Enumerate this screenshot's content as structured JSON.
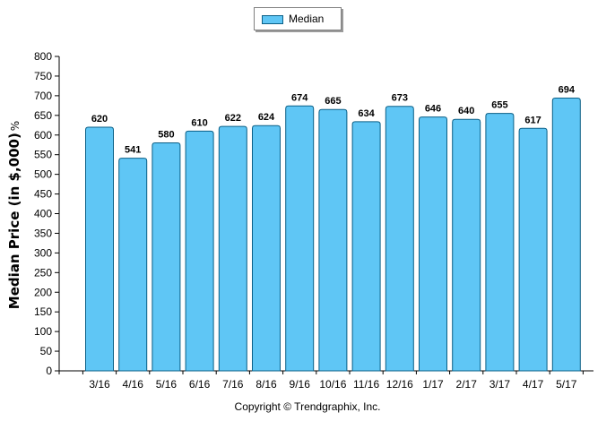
{
  "chart_data": {
    "type": "bar",
    "categories": [
      "3/16",
      "4/16",
      "5/16",
      "6/16",
      "7/16",
      "8/16",
      "9/16",
      "10/16",
      "11/16",
      "12/16",
      "1/17",
      "2/17",
      "3/17",
      "4/17",
      "5/17"
    ],
    "series": [
      {
        "name": "Median",
        "values": [
          620,
          541,
          580,
          610,
          622,
          624,
          674,
          665,
          634,
          673,
          646,
          640,
          655,
          617,
          694
        ]
      }
    ],
    "ylabel": "Median Price (in $,000)",
    "ylabel_suffix": "%",
    "ylim": [
      0,
      800
    ],
    "yticks": [
      0,
      50,
      100,
      150,
      200,
      250,
      300,
      350,
      400,
      450,
      500,
      550,
      600,
      650,
      700,
      750,
      800
    ],
    "grid": false,
    "legend_position": "top-center",
    "bar_color": "#5fc6f5",
    "bar_edge_color": "#0a5f86",
    "footer": "Copyright © Trendgraphix, Inc."
  }
}
